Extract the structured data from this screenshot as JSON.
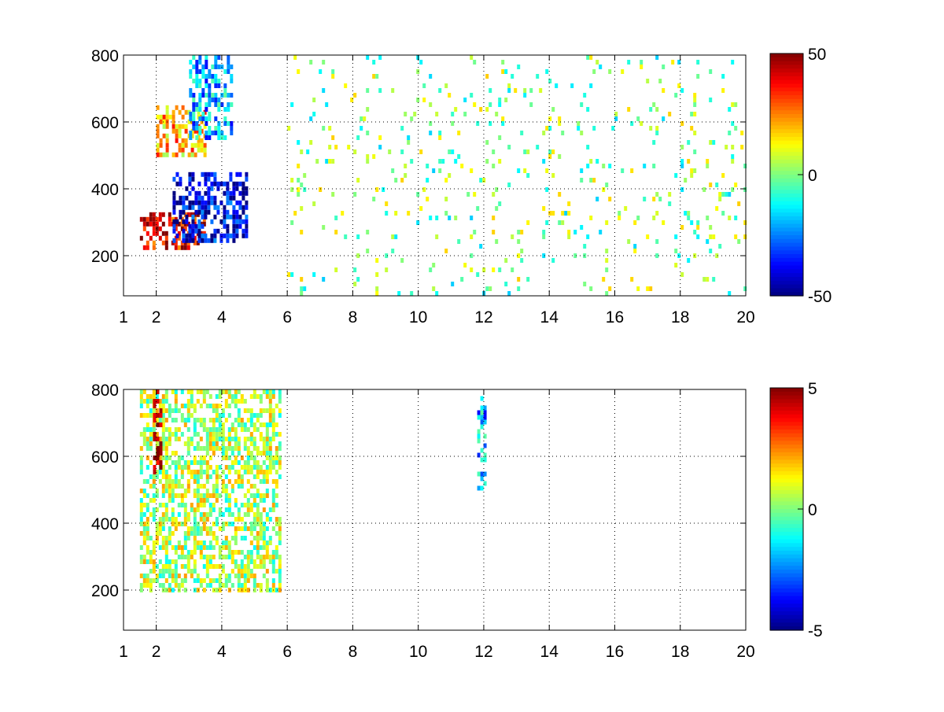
{
  "chart_data": [
    {
      "type": "heatmap",
      "title": "",
      "xlabel": "",
      "ylabel": "",
      "xlim": [
        1,
        20
      ],
      "ylim": [
        80,
        800
      ],
      "x_ticks": [
        1,
        2,
        4,
        6,
        8,
        10,
        12,
        14,
        16,
        18,
        20
      ],
      "x_tick_labels": [
        "1",
        "2",
        "4",
        "6",
        "8",
        "10",
        "12",
        "14",
        "16",
        "18",
        "20"
      ],
      "y_ticks": [
        200,
        400,
        600,
        800
      ],
      "y_tick_labels": [
        "200",
        "400",
        "600",
        "800"
      ],
      "grid": true,
      "colormap": "jet",
      "colorbar": {
        "min": -50,
        "max": 50,
        "tick_labels": [
          "50",
          "0",
          "-50"
        ],
        "tick_values": [
          50,
          0,
          -50
        ]
      },
      "features": [
        {
          "description": "positive band",
          "x_range": [
            1.5,
            3.5
          ],
          "y_range": [
            220,
            330
          ],
          "value": 40
        },
        {
          "description": "negative band",
          "x_range": [
            2.5,
            4.8
          ],
          "y_range": [
            250,
            450
          ],
          "value": -40
        },
        {
          "description": "positive upper band",
          "x_range": [
            2.0,
            3.5
          ],
          "y_range": [
            500,
            650
          ],
          "value": 20
        },
        {
          "description": "negative upper band",
          "x_range": [
            3.0,
            4.3
          ],
          "y_range": [
            550,
            800
          ],
          "value": -20
        },
        {
          "description": "sparse noise",
          "x_range": [
            6,
            20
          ],
          "y_range": [
            80,
            800
          ],
          "value": 0
        }
      ]
    },
    {
      "type": "heatmap",
      "title": "",
      "xlabel": "",
      "ylabel": "",
      "xlim": [
        1,
        20
      ],
      "ylim": [
        80,
        800
      ],
      "x_ticks": [
        1,
        2,
        4,
        6,
        8,
        10,
        12,
        14,
        16,
        18,
        20
      ],
      "x_tick_labels": [
        "1",
        "2",
        "4",
        "6",
        "8",
        "10",
        "12",
        "14",
        "16",
        "18",
        "20"
      ],
      "y_ticks": [
        200,
        400,
        600,
        800
      ],
      "y_tick_labels": [
        "200",
        "400",
        "600",
        "800"
      ],
      "grid": true,
      "colormap": "jet",
      "colorbar": {
        "min": -5,
        "max": 5,
        "tick_labels": [
          "5",
          "0",
          "-5"
        ],
        "tick_values": [
          5,
          0,
          -5
        ]
      },
      "features": [
        {
          "description": "near-zero band",
          "x_range": [
            1.5,
            5.8
          ],
          "y_range": [
            200,
            800
          ],
          "value": 0.5
        },
        {
          "description": "high streak",
          "x_range": [
            1.9,
            2.1
          ],
          "y_range": [
            550,
            800
          ],
          "value": 5
        },
        {
          "description": "isolated points",
          "x_range": [
            11.8,
            12.0
          ],
          "y_range": [
            500,
            780
          ],
          "value": -2
        }
      ]
    }
  ]
}
